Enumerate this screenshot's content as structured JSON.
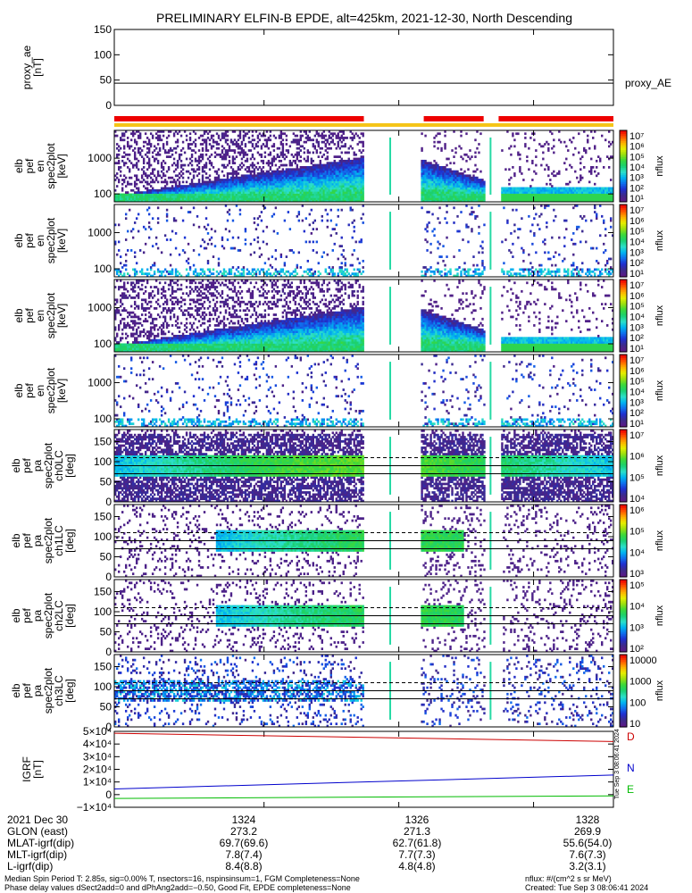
{
  "title": "PRELIMINARY ELFIN-B EPDE, alt=425km, 2021-12-30, North Descending",
  "colors": {
    "background": "#ffffff",
    "axis": "#000000",
    "dataline": "#000000",
    "coverage_red": "#ee0000",
    "coverage_yellow": "#f5c518",
    "igrf_D": "#cc0000",
    "igrf_N": "#0000cc",
    "igrf_E": "#00bb00",
    "colormap": [
      "#ffffff",
      "#5b1a86",
      "#3d2a8c",
      "#1f2fd0",
      "#0f70ee",
      "#00b4f0",
      "#2ee0c8",
      "#1ad070",
      "#3cd83a",
      "#9be010",
      "#e8ee00",
      "#ffae00",
      "#ff5500",
      "#ee0000"
    ]
  },
  "coverage": {
    "yellow_segments": [
      [
        0.0,
        1.0
      ]
    ],
    "red_segments": [
      [
        0.0,
        0.5
      ],
      [
        0.62,
        0.74
      ],
      [
        0.77,
        1.0
      ]
    ]
  },
  "chart_data": [
    {
      "type": "line",
      "panel": "proxy_ae",
      "ylabel_lines": [
        "proxy_ae",
        "[nT]"
      ],
      "ylim": [
        0,
        150
      ],
      "yticks": [
        "0",
        "50",
        "100",
        "150"
      ],
      "series": [
        {
          "name": "proxy_AE",
          "x": [
            0,
            1
          ],
          "values": [
            44,
            44
          ]
        }
      ]
    },
    {
      "type": "heatmap",
      "panel": "elb_pef_en_spec2plot_omni",
      "ylabel_lines": [
        "elb",
        "pef",
        "en",
        "spec2plot",
        "[keV]"
      ],
      "yscale": "log",
      "ylim": [
        60,
        6000
      ],
      "yticks": [
        "100",
        "1000"
      ],
      "colorbar": {
        "label": "nflux",
        "min_exp": 1,
        "max_exp": 7,
        "tick_labels": [
          "10⁷",
          "10⁶",
          "10⁵",
          "10⁴",
          "10³",
          "10²",
          "10¹"
        ]
      },
      "intensity": "high",
      "rising_edge": true
    },
    {
      "type": "heatmap",
      "panel": "elb_pef_en_spec2plot_anti",
      "ylabel_lines": [
        "elb",
        "pef",
        "en",
        "spec2plot",
        "[keV]"
      ],
      "yscale": "log",
      "ylim": [
        60,
        6000
      ],
      "yticks": [
        "100",
        "1000"
      ],
      "colorbar": {
        "label": "nflux",
        "min_exp": 1,
        "max_exp": 7,
        "tick_labels": [
          "10⁷",
          "10⁶",
          "10⁵",
          "10⁴",
          "10³",
          "10²",
          "10¹"
        ]
      },
      "intensity": "sparse",
      "rising_edge": false
    },
    {
      "type": "heatmap",
      "panel": "elb_pef_en_spec2plot_perp",
      "ylabel_lines": [
        "elb",
        "pef",
        "en",
        "spec2plot",
        "[keV]"
      ],
      "yscale": "log",
      "ylim": [
        60,
        6000
      ],
      "yticks": [
        "100",
        "1000"
      ],
      "colorbar": {
        "label": "nflux",
        "min_exp": 1,
        "max_exp": 7,
        "tick_labels": [
          "10⁷",
          "10⁶",
          "10⁵",
          "10⁴",
          "10³",
          "10²",
          "10¹"
        ]
      },
      "intensity": "high",
      "rising_edge": true
    },
    {
      "type": "heatmap",
      "panel": "elb_pef_en_spec2plot_para",
      "ylabel_lines": [
        "elb",
        "pef",
        "en",
        "spec2plot",
        "[keV]"
      ],
      "yscale": "log",
      "ylim": [
        60,
        6000
      ],
      "yticks": [
        "100",
        "1000"
      ],
      "colorbar": {
        "label": "nflux",
        "min_exp": 1,
        "max_exp": 7,
        "tick_labels": [
          "10⁷",
          "10⁶",
          "10⁵",
          "10⁴",
          "10³",
          "10²",
          "10¹"
        ]
      },
      "intensity": "sparse",
      "rising_edge": false
    },
    {
      "type": "heatmap",
      "panel": "elb_pef_pa_spec2plot_ch0LC",
      "ylabel_lines": [
        "elb",
        "pef",
        "pa",
        "spec2plot",
        "ch0LC",
        "[deg]"
      ],
      "ylim": [
        0,
        180
      ],
      "yticks": [
        "0",
        "50",
        "100",
        "150"
      ],
      "colorbar": {
        "label": "nflux",
        "min_exp": 3,
        "max_exp": 7,
        "tick_labels": [
          "10⁷",
          "10⁶",
          "10⁵",
          "10⁴"
        ]
      },
      "intensity": "pa_high",
      "lc_lines": [
        70,
        90,
        110
      ]
    },
    {
      "type": "heatmap",
      "panel": "elb_pef_pa_spec2plot_ch1LC",
      "ylabel_lines": [
        "elb",
        "pef",
        "pa",
        "spec2plot",
        "ch1LC",
        "[deg]"
      ],
      "ylim": [
        0,
        180
      ],
      "yticks": [
        "0",
        "50",
        "100",
        "150"
      ],
      "colorbar": {
        "label": "nflux",
        "min_exp": 2.5,
        "max_exp": 6.7,
        "tick_labels": [
          "10⁶",
          "10⁵",
          "10⁴",
          "10³"
        ]
      },
      "intensity": "pa_mid",
      "lc_lines": [
        70,
        90,
        110
      ]
    },
    {
      "type": "heatmap",
      "panel": "elb_pef_pa_spec2plot_ch2LC",
      "ylabel_lines": [
        "elb",
        "pef",
        "pa",
        "spec2plot",
        "ch2LC",
        "[deg]"
      ],
      "ylim": [
        0,
        180
      ],
      "yticks": [
        "0",
        "50",
        "100",
        "150"
      ],
      "colorbar": {
        "label": "nflux",
        "min_exp": 2,
        "max_exp": 6,
        "tick_labels": [
          "10⁵",
          "10⁴",
          "10³",
          "10²"
        ]
      },
      "intensity": "pa_mid",
      "lc_lines": [
        70,
        90,
        110
      ]
    },
    {
      "type": "heatmap",
      "panel": "elb_pef_pa_spec2plot_ch3LC",
      "ylabel_lines": [
        "elb",
        "pef",
        "pa",
        "spec2plot",
        "ch3LC",
        "[deg]"
      ],
      "ylim": [
        0,
        180
      ],
      "yticks": [
        "0",
        "50",
        "100",
        "150"
      ],
      "colorbar": {
        "label": "nflux",
        "min_exp": 1,
        "max_exp": 4,
        "tick_labels": [
          "10000",
          "1000",
          "100",
          "10"
        ]
      },
      "intensity": "pa_low",
      "lc_lines": [
        70,
        90,
        110
      ]
    },
    {
      "type": "line",
      "panel": "igrf",
      "ylabel_lines": [
        "IGRF",
        "[nT]"
      ],
      "ylim": [
        -10000,
        50000
      ],
      "yticks": [
        "−1×10⁴",
        "0",
        "1×10⁴",
        "2×10⁴",
        "3×10⁴",
        "4×10⁴",
        "5×10⁴"
      ],
      "series": [
        {
          "name": "D",
          "x": [
            0,
            1
          ],
          "values": [
            48500,
            42000
          ]
        },
        {
          "name": "N",
          "x": [
            0,
            1
          ],
          "values": [
            4500,
            15500
          ]
        },
        {
          "name": "E",
          "x": [
            0,
            1
          ],
          "values": [
            -3000,
            -1000
          ]
        }
      ]
    }
  ],
  "time_axis": {
    "ticks": [
      {
        "label": "1324",
        "frac": 0.3
      },
      {
        "label": "1326",
        "frac": 0.57
      },
      {
        "label": "1328",
        "frac": 0.84
      }
    ],
    "data_gaps": [
      [
        0.5,
        0.612
      ],
      [
        0.74,
        0.775
      ]
    ],
    "spikes": [
      0.551,
      0.752
    ]
  },
  "ephemeris": {
    "rows": [
      {
        "label": "2021 Dec 30",
        "values": [
          "1324",
          "1326",
          "1328"
        ]
      },
      {
        "label": "GLON (east)",
        "values": [
          "273.2",
          "271.3",
          "269.9"
        ]
      },
      {
        "label": "MLAT-igrf(dip)",
        "values": [
          "69.7(69.6)",
          "62.7(61.8)",
          "55.6(54.0)"
        ]
      },
      {
        "label": "MLT-igrf(dip)",
        "values": [
          "7.8(7.4)",
          "7.7(7.3)",
          "7.6(7.3)"
        ]
      },
      {
        "label": "L-igrf(dip)",
        "values": [
          "8.4(8.8)",
          "4.8(4.8)",
          "3.2(3.1)"
        ]
      }
    ]
  },
  "footer": {
    "line1": "Median Spin Period T: 2.85s, sig=0.00% T, nsectors=16, nspinsinsum=1, FGM Completeness=None",
    "line2": "Phase delay values dSect2add=0 and dPhAng2add=−0.50, Good Fit, EPDE completeness=None",
    "units": "nflux: #/(cm^2 s sr MeV)",
    "created": "Created: Tue Sep  3 08:06:41 2024",
    "vertical_stamp": "Tue Sep  3 08:06:41 2024"
  }
}
